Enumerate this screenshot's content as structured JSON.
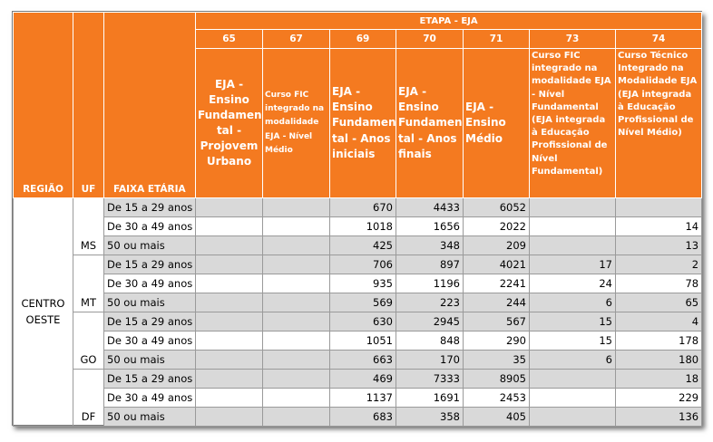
{
  "table": {
    "etapa_title": "ETAPA - EJA",
    "row_headers": {
      "regiao": "REGIÃO",
      "uf": "UF",
      "faixa": "FAIXA ETÁRIA"
    },
    "codes": [
      "65",
      "67",
      "69",
      "70",
      "71",
      "73",
      "74"
    ],
    "descriptions": [
      "EJA - Ensino Fundamen tal - Projovem Urbano",
      "Curso FIC integrado na modalidade EJA - Nível Médio",
      "EJA - Ensino Fundamen tal - Anos iniciais",
      "EJA - Ensino Fundamen tal - Anos finais",
      "EJA - Ensino Médio",
      "Curso FIC integrado na modalidade EJA - Nível Fundamental (EJA integrada à Educação Profissional de Nível Fundamental)",
      "Curso Técnico Integrado na Modalidade EJA (EJA integrada à Educação Profissional de Nível Médio)"
    ],
    "regiao": "CENTRO OESTE",
    "ufs": [
      {
        "uf": "MS",
        "rows": [
          {
            "faixa": "De 15 a 29 anos",
            "values": [
              "",
              "",
              "670",
              "4433",
              "6052",
              "",
              ""
            ]
          },
          {
            "faixa": "De 30 a 49 anos",
            "values": [
              "",
              "",
              "1018",
              "1656",
              "2022",
              "",
              "14"
            ]
          },
          {
            "faixa": "50 ou mais",
            "values": [
              "",
              "",
              "425",
              "348",
              "209",
              "",
              "13"
            ]
          }
        ]
      },
      {
        "uf": "MT",
        "rows": [
          {
            "faixa": "De 15 a 29 anos",
            "values": [
              "",
              "",
              "706",
              "897",
              "4021",
              "17",
              "2"
            ]
          },
          {
            "faixa": "De 30 a 49 anos",
            "values": [
              "",
              "",
              "935",
              "1196",
              "2241",
              "24",
              "78"
            ]
          },
          {
            "faixa": "50 ou mais",
            "values": [
              "",
              "",
              "569",
              "223",
              "244",
              "6",
              "65"
            ]
          }
        ]
      },
      {
        "uf": "GO",
        "rows": [
          {
            "faixa": "De 15 a 29 anos",
            "values": [
              "",
              "",
              "630",
              "2945",
              "567",
              "15",
              "4"
            ]
          },
          {
            "faixa": "De 30 a 49 anos",
            "values": [
              "",
              "",
              "1051",
              "848",
              "290",
              "15",
              "178"
            ]
          },
          {
            "faixa": "50 ou mais",
            "values": [
              "",
              "",
              "663",
              "170",
              "35",
              "6",
              "180"
            ]
          }
        ]
      },
      {
        "uf": "DF",
        "rows": [
          {
            "faixa": "De 15 a 29 anos",
            "values": [
              "",
              "",
              "469",
              "7333",
              "8905",
              "",
              "18"
            ]
          },
          {
            "faixa": "De 30 a 49 anos",
            "values": [
              "",
              "",
              "1137",
              "1691",
              "2453",
              "",
              "229"
            ]
          },
          {
            "faixa": "50 ou mais",
            "values": [
              "",
              "",
              "683",
              "358",
              "405",
              "",
              "136"
            ]
          }
        ]
      }
    ],
    "colors": {
      "header_bg": "#f47a20",
      "header_text": "#ffffff",
      "row_shade": "#d9d9d9"
    }
  }
}
